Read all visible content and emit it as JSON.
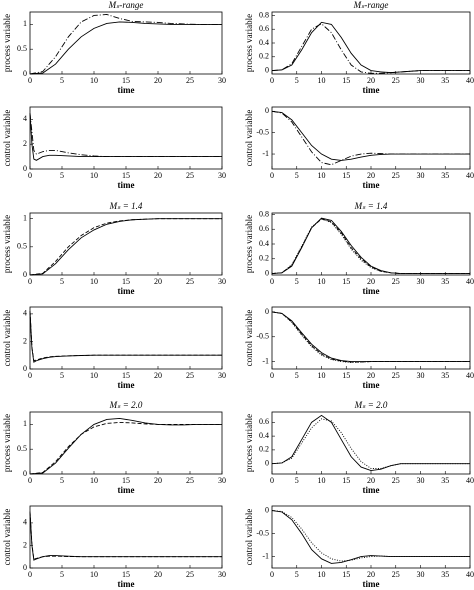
{
  "chart_data": [
    {
      "type": "line",
      "title": "Mₛ-range",
      "x_label": "time",
      "y_label": "process variable",
      "x": [
        0,
        2,
        4,
        6,
        8,
        10,
        12,
        14,
        16,
        18,
        20,
        22,
        24,
        26,
        28,
        30
      ],
      "series": [
        {
          "color": "#000000",
          "dash": "solid",
          "values": [
            0,
            0.02,
            0.2,
            0.5,
            0.75,
            0.92,
            1.02,
            1.05,
            1.04,
            1.02,
            1.01,
            1.0,
            1.0,
            1.0,
            1.0,
            1.0
          ]
        },
        {
          "color": "#000000",
          "dash": "dashdot",
          "values": [
            0,
            0.05,
            0.35,
            0.75,
            1.05,
            1.18,
            1.2,
            1.12,
            1.06,
            1.05,
            1.04,
            1.02,
            1.01,
            1.0,
            1.0,
            1.0
          ]
        }
      ],
      "xlim": [
        0,
        30
      ],
      "ylim": [
        0,
        1.25
      ],
      "xticks": [
        0,
        5,
        10,
        15,
        20,
        25,
        30
      ],
      "yticks": [
        0,
        0.5,
        1
      ]
    },
    {
      "type": "line",
      "title": "Mₛ-range",
      "x_label": "time",
      "y_label": "process variable",
      "x": [
        0,
        2,
        4,
        6,
        8,
        10,
        12,
        14,
        16,
        18,
        20,
        22,
        24,
        26,
        28,
        30,
        32,
        34,
        36,
        38,
        40
      ],
      "series": [
        {
          "color": "#000000",
          "dash": "solid",
          "values": [
            0,
            0.01,
            0.08,
            0.3,
            0.55,
            0.7,
            0.67,
            0.48,
            0.25,
            0.08,
            0.0,
            -0.02,
            -0.03,
            -0.02,
            -0.01,
            0,
            0,
            0,
            0,
            0,
            0
          ]
        },
        {
          "color": "#000000",
          "dash": "dashdot",
          "values": [
            0,
            0.01,
            0.1,
            0.35,
            0.6,
            0.68,
            0.55,
            0.3,
            0.08,
            -0.02,
            -0.04,
            -0.04,
            -0.03,
            -0.02,
            -0.01,
            0,
            0,
            0,
            0,
            0,
            0
          ]
        }
      ],
      "xlim": [
        0,
        40
      ],
      "ylim": [
        -0.05,
        0.85
      ],
      "xticks": [
        0,
        5,
        10,
        15,
        20,
        25,
        30,
        35,
        40
      ],
      "yticks": [
        0,
        0.2,
        0.4,
        0.6,
        0.8
      ]
    },
    {
      "type": "line",
      "x_label": "time",
      "y_label": "control variable",
      "x": [
        0,
        0.3,
        0.6,
        1,
        2,
        3,
        4,
        6,
        8,
        10,
        12,
        15,
        20,
        25,
        30
      ],
      "series": [
        {
          "color": "#000000",
          "dash": "solid",
          "values": [
            4.5,
            2.0,
            0.8,
            0.7,
            1.0,
            1.1,
            1.1,
            1.05,
            1.0,
            1.0,
            1.0,
            1.0,
            1.0,
            1.0,
            1.0
          ]
        },
        {
          "color": "#000000",
          "dash": "dashdot",
          "values": [
            4.5,
            3.0,
            1.5,
            1.2,
            1.4,
            1.5,
            1.5,
            1.3,
            1.15,
            1.05,
            1.0,
            1.0,
            1.0,
            1.0,
            1.0
          ]
        }
      ],
      "xlim": [
        0,
        30
      ],
      "ylim": [
        0,
        5
      ],
      "xticks": [
        0,
        5,
        10,
        15,
        20,
        25,
        30
      ],
      "yticks": [
        0,
        2,
        4
      ]
    },
    {
      "type": "line",
      "x_label": "time",
      "y_label": "control variable",
      "x": [
        0,
        2,
        4,
        6,
        8,
        10,
        12,
        14,
        16,
        18,
        20,
        22,
        24,
        26,
        28,
        30,
        32,
        34,
        36,
        38,
        40
      ],
      "series": [
        {
          "color": "#000000",
          "dash": "solid",
          "values": [
            0,
            -0.03,
            -0.2,
            -0.5,
            -0.8,
            -1.0,
            -1.12,
            -1.15,
            -1.12,
            -1.07,
            -1.03,
            -1.01,
            -1.0,
            -1.0,
            -1.0,
            -1.0,
            -1.0,
            -1.0,
            -1.0,
            -1.0,
            -1.0
          ]
        },
        {
          "color": "#000000",
          "dash": "dashdot",
          "values": [
            0,
            -0.04,
            -0.25,
            -0.6,
            -0.95,
            -1.2,
            -1.25,
            -1.15,
            -1.05,
            -1.0,
            -0.98,
            -0.99,
            -1.0,
            -1.0,
            -1.0,
            -1.0,
            -1.0,
            -1.0,
            -1.0,
            -1.0,
            -1.0
          ]
        }
      ],
      "xlim": [
        0,
        40
      ],
      "ylim": [
        -1.35,
        0.1
      ],
      "xticks": [
        0,
        5,
        10,
        15,
        20,
        25,
        30,
        35,
        40
      ],
      "yticks": [
        -1,
        -0.5,
        0
      ]
    },
    {
      "type": "line",
      "title": "Mₛ = 1.4",
      "x_label": "time",
      "y_label": "process variable",
      "x": [
        0,
        2,
        4,
        6,
        8,
        10,
        12,
        14,
        16,
        18,
        20,
        22,
        24,
        26,
        28,
        30
      ],
      "series": [
        {
          "color": "#000000",
          "dash": "solid",
          "values": [
            0,
            0.02,
            0.2,
            0.45,
            0.66,
            0.8,
            0.9,
            0.95,
            0.98,
            0.99,
            1.0,
            1.0,
            1.0,
            1.0,
            1.0,
            1.0
          ]
        },
        {
          "color": "#000000",
          "dash": "dashed",
          "values": [
            0,
            0.03,
            0.24,
            0.5,
            0.7,
            0.84,
            0.92,
            0.96,
            0.98,
            0.99,
            1.0,
            1.0,
            1.0,
            1.0,
            1.0,
            1.0
          ]
        }
      ],
      "xlim": [
        0,
        30
      ],
      "ylim": [
        0,
        1.1
      ],
      "xticks": [
        0,
        5,
        10,
        15,
        20,
        25,
        30
      ],
      "yticks": [
        0,
        0.5,
        1
      ]
    },
    {
      "type": "line",
      "title": "Mₛ = 1.4",
      "x_label": "time",
      "y_label": "process variable",
      "x": [
        0,
        2,
        4,
        6,
        8,
        10,
        12,
        14,
        16,
        18,
        20,
        22,
        24,
        26,
        28,
        30,
        32,
        34,
        36,
        38,
        40
      ],
      "series": [
        {
          "color": "#000000",
          "dash": "solid",
          "values": [
            0,
            0.01,
            0.1,
            0.35,
            0.62,
            0.75,
            0.72,
            0.57,
            0.38,
            0.22,
            0.1,
            0.04,
            0.01,
            0,
            0,
            0,
            0,
            0,
            0,
            0,
            0
          ]
        },
        {
          "color": "#000000",
          "dash": "dashed",
          "values": [
            0,
            0.01,
            0.11,
            0.36,
            0.62,
            0.74,
            0.7,
            0.55,
            0.35,
            0.2,
            0.09,
            0.03,
            0.01,
            0,
            0,
            0,
            0,
            0,
            0,
            0,
            0
          ]
        },
        {
          "color": "#000000",
          "dash": "dotted",
          "values": [
            0,
            0.01,
            0.12,
            0.37,
            0.63,
            0.74,
            0.69,
            0.53,
            0.33,
            0.18,
            0.08,
            0.03,
            0.01,
            0,
            0,
            0,
            0,
            0,
            0,
            0,
            0
          ]
        }
      ],
      "xlim": [
        0,
        40
      ],
      "ylim": [
        -0.02,
        0.82
      ],
      "xticks": [
        0,
        5,
        10,
        15,
        20,
        25,
        30,
        35,
        40
      ],
      "yticks": [
        0,
        0.2,
        0.4,
        0.6,
        0.8
      ]
    },
    {
      "type": "line",
      "x_label": "time",
      "y_label": "control variable",
      "x": [
        0,
        0.3,
        0.6,
        1,
        2,
        3,
        4,
        6,
        8,
        10,
        12,
        15,
        20,
        25,
        30
      ],
      "series": [
        {
          "color": "#000000",
          "dash": "solid",
          "values": [
            4.2,
            1.5,
            0.5,
            0.6,
            0.75,
            0.85,
            0.9,
            0.95,
            0.98,
            1.0,
            1.0,
            1.0,
            1.0,
            1.0,
            1.0
          ]
        },
        {
          "color": "#000000",
          "dash": "dashed",
          "values": [
            4.2,
            1.6,
            0.6,
            0.65,
            0.8,
            0.88,
            0.92,
            0.96,
            0.98,
            1.0,
            1.0,
            1.0,
            1.0,
            1.0,
            1.0
          ]
        }
      ],
      "xlim": [
        0,
        30
      ],
      "ylim": [
        0,
        4.5
      ],
      "xticks": [
        0,
        5,
        10,
        15,
        20,
        25,
        30
      ],
      "yticks": [
        0,
        2,
        4
      ]
    },
    {
      "type": "line",
      "x_label": "time",
      "y_label": "control variable",
      "x": [
        0,
        2,
        4,
        6,
        8,
        10,
        12,
        14,
        16,
        18,
        20,
        22,
        24,
        26,
        28,
        30,
        32,
        34,
        36,
        38,
        40
      ],
      "series": [
        {
          "color": "#000000",
          "dash": "solid",
          "values": [
            0,
            -0.03,
            -0.18,
            -0.42,
            -0.65,
            -0.82,
            -0.93,
            -0.98,
            -1.0,
            -1.0,
            -1.0,
            -1.0,
            -1.0,
            -1.0,
            -1.0,
            -1.0,
            -1.0,
            -1.0,
            -1.0,
            -1.0,
            -1.0
          ]
        },
        {
          "color": "#000000",
          "dash": "dashed",
          "values": [
            0,
            -0.03,
            -0.2,
            -0.45,
            -0.68,
            -0.85,
            -0.95,
            -0.99,
            -1.01,
            -1.01,
            -1.0,
            -1.0,
            -1.0,
            -1.0,
            -1.0,
            -1.0,
            -1.0,
            -1.0,
            -1.0,
            -1.0,
            -1.0
          ]
        },
        {
          "color": "#000000",
          "dash": "dotted",
          "values": [
            0,
            -0.03,
            -0.21,
            -0.47,
            -0.7,
            -0.87,
            -0.96,
            -1.0,
            -1.02,
            -1.01,
            -1.0,
            -1.0,
            -1.0,
            -1.0,
            -1.0,
            -1.0,
            -1.0,
            -1.0,
            -1.0,
            -1.0,
            -1.0
          ]
        }
      ],
      "xlim": [
        0,
        40
      ],
      "ylim": [
        -1.15,
        0.1
      ],
      "xticks": [
        0,
        5,
        10,
        15,
        20,
        25,
        30,
        35,
        40
      ],
      "yticks": [
        -1,
        -0.5,
        0
      ]
    },
    {
      "type": "line",
      "title": "Mₛ = 2.0",
      "x_label": "time",
      "y_label": "process variable",
      "x": [
        0,
        2,
        4,
        6,
        8,
        10,
        12,
        14,
        16,
        18,
        20,
        22,
        24,
        26,
        28,
        30
      ],
      "series": [
        {
          "color": "#000000",
          "dash": "solid",
          "values": [
            0,
            0.02,
            0.22,
            0.52,
            0.8,
            1.0,
            1.1,
            1.12,
            1.08,
            1.03,
            1.0,
            0.99,
            0.99,
            1.0,
            1.0,
            1.0
          ]
        },
        {
          "color": "#000000",
          "dash": "dashed",
          "values": [
            0,
            0.03,
            0.25,
            0.55,
            0.8,
            0.95,
            1.02,
            1.04,
            1.03,
            1.01,
            1.0,
            1.0,
            1.0,
            1.0,
            1.0,
            1.0
          ]
        }
      ],
      "xlim": [
        0,
        30
      ],
      "ylim": [
        0,
        1.25
      ],
      "xticks": [
        0,
        5,
        10,
        15,
        20,
        25,
        30
      ],
      "yticks": [
        0,
        0.5,
        1
      ]
    },
    {
      "type": "line",
      "title": "Mₛ = 2.0",
      "x_label": "time",
      "y_label": "process variable",
      "x": [
        0,
        2,
        4,
        6,
        8,
        10,
        12,
        14,
        16,
        18,
        20,
        22,
        24,
        26,
        28,
        30,
        32,
        34,
        36,
        38,
        40
      ],
      "series": [
        {
          "color": "#000000",
          "dash": "solid",
          "values": [
            0,
            0.01,
            0.1,
            0.35,
            0.6,
            0.7,
            0.6,
            0.35,
            0.1,
            -0.05,
            -0.1,
            -0.08,
            -0.03,
            0,
            0,
            0,
            0,
            0,
            0,
            0,
            0
          ]
        },
        {
          "color": "#000000",
          "dash": "dotted",
          "values": [
            0,
            0.01,
            0.08,
            0.3,
            0.52,
            0.65,
            0.62,
            0.45,
            0.22,
            0.03,
            -0.07,
            -0.07,
            -0.03,
            0,
            0,
            0,
            0,
            0,
            0,
            0,
            0
          ]
        }
      ],
      "xlim": [
        0,
        40
      ],
      "ylim": [
        -0.15,
        0.75
      ],
      "xticks": [
        0,
        5,
        10,
        15,
        20,
        25,
        30,
        35,
        40
      ],
      "yticks": [
        0,
        0.2,
        0.4,
        0.6
      ]
    },
    {
      "type": "line",
      "x_label": "time",
      "y_label": "control variable",
      "x": [
        0,
        0.3,
        0.6,
        1,
        2,
        3,
        4,
        6,
        8,
        10,
        12,
        15,
        20,
        25,
        30
      ],
      "series": [
        {
          "color": "#000000",
          "dash": "solid",
          "values": [
            5,
            2,
            0.7,
            0.8,
            1.0,
            1.1,
            1.1,
            1.05,
            1.0,
            1.0,
            1.0,
            1.0,
            1.0,
            1.0,
            1.0
          ]
        },
        {
          "color": "#000000",
          "dash": "dashed",
          "values": [
            5,
            2.1,
            0.8,
            0.85,
            1.0,
            1.05,
            1.05,
            1.02,
            1.0,
            1.0,
            1.0,
            1.0,
            1.0,
            1.0,
            1.0
          ]
        }
      ],
      "xlim": [
        0,
        30
      ],
      "ylim": [
        0,
        5.5
      ],
      "xticks": [
        0,
        5,
        10,
        15,
        20,
        25,
        30
      ],
      "yticks": [
        0,
        2,
        4
      ]
    },
    {
      "type": "line",
      "x_label": "time",
      "y_label": "control variable",
      "x": [
        0,
        2,
        4,
        6,
        8,
        10,
        12,
        14,
        16,
        18,
        20,
        22,
        24,
        26,
        28,
        30,
        32,
        34,
        36,
        38,
        40
      ],
      "series": [
        {
          "color": "#000000",
          "dash": "solid",
          "values": [
            0,
            -0.03,
            -0.2,
            -0.5,
            -0.85,
            -1.05,
            -1.15,
            -1.13,
            -1.07,
            -1.0,
            -0.98,
            -0.99,
            -1.0,
            -1.0,
            -1.0,
            -1.0,
            -1.0,
            -1.0,
            -1.0,
            -1.0,
            -1.0
          ]
        },
        {
          "color": "#000000",
          "dash": "dotted",
          "values": [
            0,
            -0.02,
            -0.15,
            -0.4,
            -0.7,
            -0.92,
            -1.05,
            -1.1,
            -1.08,
            -1.03,
            -1.0,
            -0.99,
            -1.0,
            -1.0,
            -1.0,
            -1.0,
            -1.0,
            -1.0,
            -1.0,
            -1.0,
            -1.0
          ]
        }
      ],
      "xlim": [
        0,
        40
      ],
      "ylim": [
        -1.25,
        0.1
      ],
      "xticks": [
        0,
        5,
        10,
        15,
        20,
        25,
        30,
        35,
        40
      ],
      "yticks": [
        -1,
        -0.5,
        0
      ]
    }
  ]
}
